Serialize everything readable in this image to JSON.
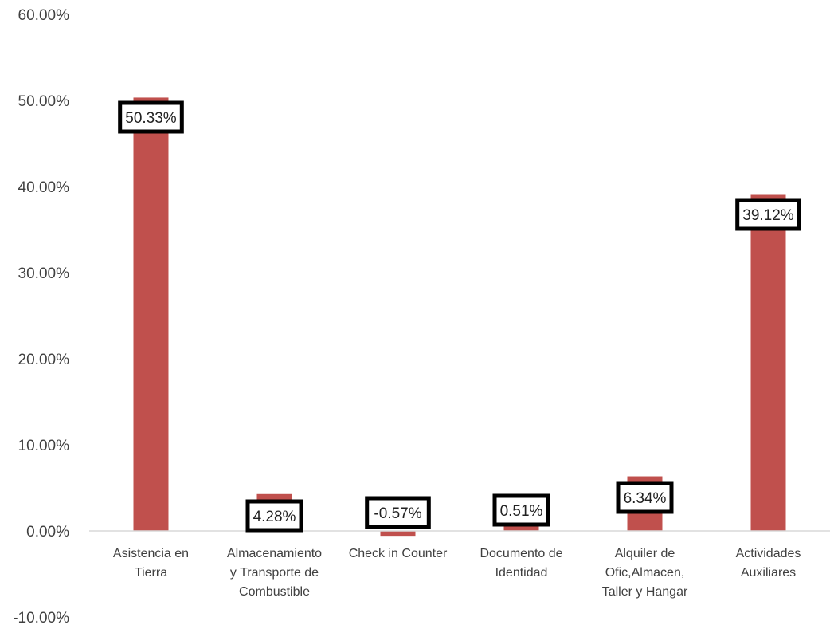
{
  "chart_data": {
    "type": "bar",
    "title": "",
    "xlabel": "",
    "ylabel": "",
    "ylim": [
      -10,
      60
    ],
    "yticks": [
      {
        "value": -10,
        "label": "-10.00%"
      },
      {
        "value": 0,
        "label": "0.00%"
      },
      {
        "value": 10,
        "label": "10.00%"
      },
      {
        "value": 20,
        "label": "20.00%"
      },
      {
        "value": 30,
        "label": "30.00%"
      },
      {
        "value": 40,
        "label": "40.00%"
      },
      {
        "value": 50,
        "label": "50.00%"
      },
      {
        "value": 60,
        "label": "60.00%"
      }
    ],
    "grid": false,
    "legend": "none",
    "categories": [
      [
        "Asistencia en",
        "Tierra"
      ],
      [
        "Almacenamiento",
        "y Transporte de",
        "Combustible"
      ],
      [
        "Check in Counter"
      ],
      [
        "Documento de",
        "Identidad"
      ],
      [
        "Alquiler de",
        "Ofic,Almacen,",
        "Taller y Hangar"
      ],
      [
        "Actividades",
        "Auxiliares"
      ]
    ],
    "values": [
      50.33,
      4.28,
      -0.57,
      0.51,
      6.34,
      39.12
    ],
    "data_labels": [
      "50.33%",
      "4.28%",
      "-0.57%",
      "0.51%",
      "6.34%",
      "39.12%"
    ],
    "bar_color": "#c0504d",
    "axis_color": "#d9d9d9",
    "label_border_color": "#000000"
  }
}
